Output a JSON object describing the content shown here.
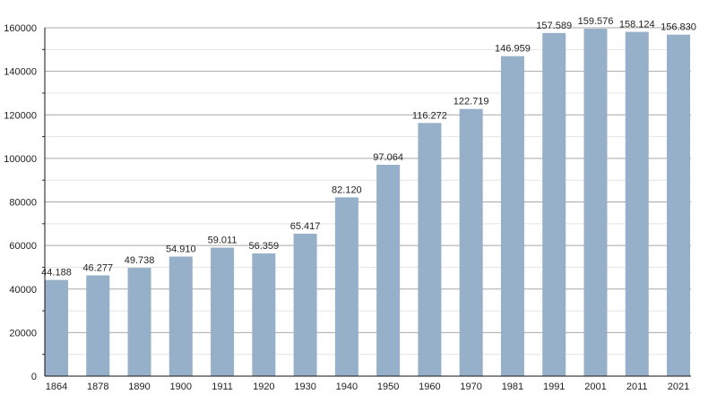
{
  "chart_data": {
    "type": "bar",
    "title": "",
    "xlabel": "",
    "ylabel": "",
    "categories": [
      "1864",
      "1878",
      "1890",
      "1900",
      "1911",
      "1920",
      "1930",
      "1940",
      "1950",
      "1960",
      "1970",
      "1981",
      "1991",
      "2001",
      "2011",
      "2021"
    ],
    "values": [
      44188,
      46277,
      49738,
      54910,
      59011,
      56359,
      65417,
      82120,
      97064,
      116272,
      122719,
      146959,
      157589,
      159576,
      158124,
      156830
    ],
    "data_labels": [
      "44.188",
      "46.277",
      "49.738",
      "54.910",
      "59.011",
      "56.359",
      "65.417",
      "82.120",
      "97.064",
      "116.272",
      "122.719",
      "146.959",
      "157.589",
      "159.576",
      "158.124",
      "156.830"
    ],
    "ylim": [
      0,
      160000
    ],
    "yticks": [
      "0",
      "20000",
      "40000",
      "60000",
      "80000",
      "100000",
      "120000",
      "140000",
      "160000"
    ],
    "grid": true,
    "bar_color": "#97b0ca"
  }
}
